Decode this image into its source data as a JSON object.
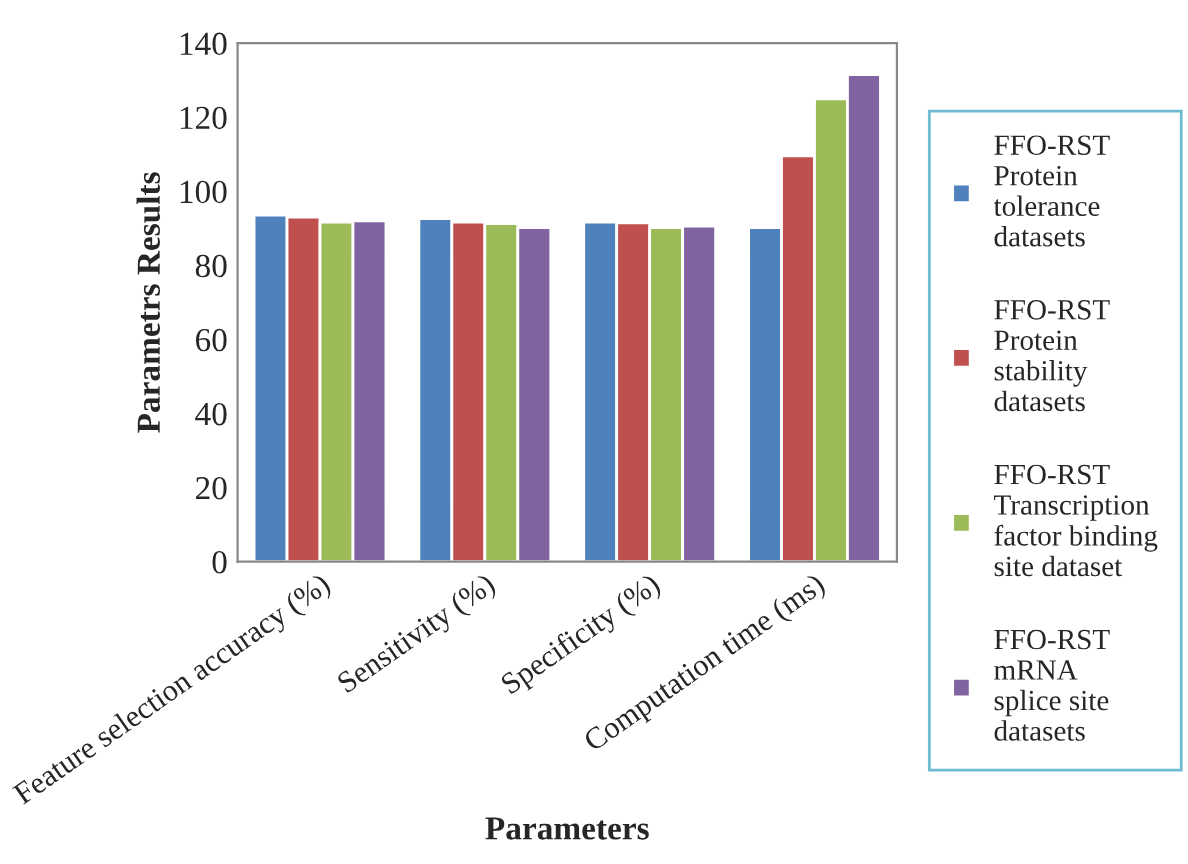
{
  "chart_data": {
    "type": "bar",
    "xlabel": "Parameters",
    "ylabel": "Parametrs Results",
    "categories": [
      "Feature selection accuracy (%)",
      "Sensitivity (%)",
      "Specificity (%)",
      "Computation time (ms)"
    ],
    "series": [
      {
        "name": "FFO-RST\nProtein\ntolerance\ndatasets",
        "color": "#4f81bd",
        "values": [
          93.6,
          92.6,
          91.7,
          90.2
        ]
      },
      {
        "name": "FFO-RST\nProtein\nstability\ndatasets",
        "color": "#c0504d",
        "values": [
          93,
          91.7,
          91.5,
          109.6
        ]
      },
      {
        "name": "FFO-RST\nTranscription\nfactor binding\nsite dataset",
        "color": "#9bbb59",
        "values": [
          91.7,
          91.3,
          90.2,
          125
        ]
      },
      {
        "name": "FFO-RST\nmRNA\nsplice site\ndatasets",
        "color": "#8064a2",
        "values": [
          92,
          90.2,
          90.6,
          131.5
        ]
      }
    ],
    "ylim": [
      0,
      140
    ],
    "yticks": [
      0,
      20,
      40,
      60,
      80,
      100,
      120,
      140
    ],
    "grid": false,
    "legend": "right"
  }
}
